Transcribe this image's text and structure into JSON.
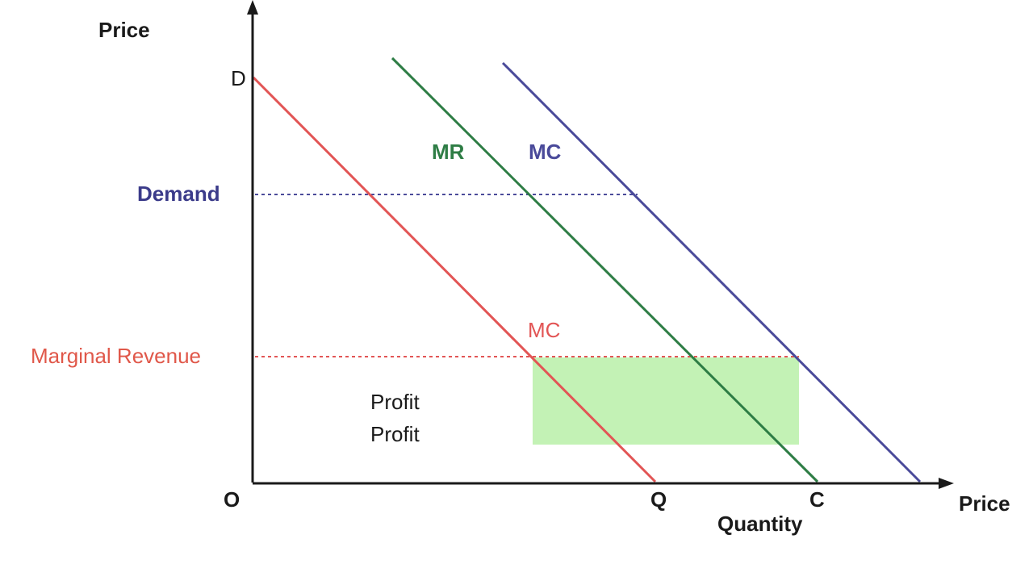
{
  "diagram": {
    "labels": {
      "y_axis": "Price",
      "x_axis_end": "Price",
      "x_axis_title": "Quantity",
      "origin": "O",
      "d_point": "D",
      "q_point": "Q",
      "c_point": "C",
      "demand_level": "Demand",
      "mr_level": "Marginal Revenue",
      "mr_curve": "MR",
      "mc_curve_upper": "MC",
      "mc_point": "MC",
      "profit_line_1": "Profit",
      "profit_line_2": "Profit"
    },
    "colors": {
      "axis": "#1a1a1a",
      "red": "#e25555",
      "green": "#2e7d45",
      "blue": "#4a4a9a",
      "demand_text": "#3b3b8a",
      "mr_text": "#e0584a",
      "profit_fill": "#b9f0a8",
      "text": "#1a1a1a"
    }
  }
}
